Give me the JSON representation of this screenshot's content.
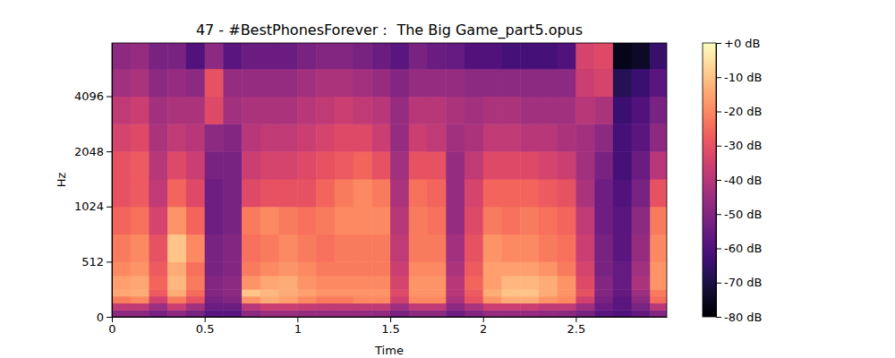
{
  "chart_data": {
    "type": "heatmap",
    "title": "47 - #BestPhonesForever： The Big Game_part5.opus",
    "x_label": "Time",
    "y_label": "Hz",
    "x": [
      0,
      0.1,
      0.2,
      0.3,
      0.4,
      0.5,
      0.6,
      0.7,
      0.8,
      0.9,
      1.0,
      1.1,
      1.2,
      1.3,
      1.4,
      1.5,
      1.6,
      1.7,
      1.8,
      1.9,
      2.0,
      2.1,
      2.2,
      2.3,
      2.4,
      2.5,
      2.6,
      2.7,
      2.8,
      2.9
    ],
    "y": [
      0,
      64,
      128,
      192,
      256,
      384,
      512,
      724,
      1024,
      1448,
      2048,
      2896,
      4096,
      5793
    ],
    "z": [
      [
        -48,
        -48,
        -52,
        -48,
        -52,
        -58,
        -58,
        -48,
        -45,
        -45,
        -46,
        -46,
        -46,
        -46,
        -47,
        -52,
        -48,
        -48,
        -54,
        -50,
        -46,
        -46,
        -46,
        -47,
        -48,
        -52,
        -58,
        -60,
        -56,
        -50
      ],
      [
        -38,
        -38,
        -45,
        -36,
        -44,
        -55,
        -55,
        -40,
        -36,
        -36,
        -37,
        -38,
        -38,
        -38,
        -38,
        -45,
        -38,
        -38,
        -48,
        -42,
        -36,
        -36,
        -36,
        -38,
        -38,
        -45,
        -55,
        -58,
        -52,
        -40
      ],
      [
        -22,
        -20,
        -35,
        -22,
        -30,
        -52,
        -50,
        -18,
        -14,
        -16,
        -20,
        -22,
        -22,
        -20,
        -20,
        -35,
        -20,
        -20,
        -42,
        -30,
        -18,
        -14,
        -14,
        -18,
        -20,
        -35,
        -52,
        -58,
        -48,
        -25
      ],
      [
        -15,
        -14,
        -28,
        -14,
        -25,
        -50,
        -48,
        -10,
        -12,
        -14,
        -16,
        -18,
        -18,
        -18,
        -18,
        -32,
        -18,
        -18,
        -40,
        -28,
        -14,
        -10,
        -10,
        -14,
        -18,
        -30,
        -50,
        -56,
        -45,
        -22
      ],
      [
        -16,
        -15,
        -26,
        -12,
        -22,
        -50,
        -48,
        -18,
        -15,
        -14,
        -18,
        -20,
        -20,
        -20,
        -20,
        -34,
        -18,
        -18,
        -40,
        -26,
        -16,
        -12,
        -12,
        -14,
        -18,
        -32,
        -50,
        -56,
        -42,
        -18
      ],
      [
        -20,
        -18,
        -28,
        -14,
        -24,
        -52,
        -50,
        -22,
        -20,
        -18,
        -20,
        -22,
        -22,
        -22,
        -22,
        -36,
        -20,
        -20,
        -42,
        -28,
        -16,
        -16,
        -16,
        -18,
        -22,
        -34,
        -52,
        -56,
        -44,
        -18
      ],
      [
        -22,
        -20,
        -30,
        -10,
        -20,
        -52,
        -50,
        -24,
        -22,
        -20,
        -22,
        -24,
        -22,
        -22,
        -22,
        -38,
        -22,
        -22,
        -44,
        -30,
        -18,
        -20,
        -20,
        -22,
        -24,
        -36,
        -52,
        -58,
        -46,
        -20
      ],
      [
        -26,
        -24,
        -34,
        -18,
        -26,
        -54,
        -52,
        -22,
        -20,
        -22,
        -24,
        -22,
        -20,
        -20,
        -20,
        -40,
        -22,
        -24,
        -46,
        -32,
        -22,
        -24,
        -22,
        -24,
        -26,
        -38,
        -54,
        -58,
        -48,
        -22
      ],
      [
        -30,
        -28,
        -38,
        -26,
        -32,
        -54,
        -52,
        -32,
        -30,
        -30,
        -30,
        -26,
        -22,
        -20,
        -22,
        -42,
        -24,
        -26,
        -46,
        -34,
        -26,
        -26,
        -26,
        -28,
        -30,
        -42,
        -54,
        -60,
        -52,
        -30
      ],
      [
        -30,
        -28,
        -40,
        -32,
        -36,
        -52,
        -52,
        -36,
        -34,
        -34,
        -32,
        -30,
        -28,
        -26,
        -30,
        -44,
        -30,
        -30,
        -46,
        -38,
        -32,
        -32,
        -32,
        -34,
        -36,
        -44,
        -52,
        -62,
        -55,
        -40
      ],
      [
        -34,
        -32,
        -42,
        -38,
        -40,
        -48,
        -50,
        -40,
        -38,
        -38,
        -36,
        -34,
        -32,
        -32,
        -36,
        -46,
        -36,
        -38,
        -44,
        -42,
        -38,
        -38,
        -40,
        -40,
        -42,
        -44,
        -48,
        -62,
        -58,
        -48
      ],
      [
        -38,
        -36,
        -44,
        -42,
        -42,
        -32,
        -44,
        -42,
        -42,
        -42,
        -40,
        -38,
        -36,
        -38,
        -40,
        -46,
        -40,
        -40,
        -42,
        -44,
        -42,
        -42,
        -44,
        -44,
        -44,
        -40,
        -42,
        -64,
        -60,
        -52
      ],
      [
        -44,
        -42,
        -48,
        -46,
        -48,
        -30,
        -46,
        -46,
        -46,
        -46,
        -44,
        -42,
        -42,
        -44,
        -46,
        -50,
        -46,
        -46,
        -46,
        -48,
        -48,
        -48,
        -48,
        -48,
        -48,
        -36,
        -34,
        -68,
        -64,
        -58
      ],
      [
        -48,
        -46,
        -52,
        -52,
        -60,
        -48,
        -58,
        -55,
        -55,
        -55,
        -52,
        -50,
        -50,
        -52,
        -55,
        -58,
        -52,
        -55,
        -56,
        -60,
        -60,
        -62,
        -62,
        -62,
        -60,
        -34,
        -32,
        -76,
        -74,
        -65
      ]
    ],
    "xlim": [
      0,
      2.99
    ],
    "ylim": [
      0,
      8000
    ],
    "xticks": [
      0,
      0.5,
      1,
      1.5,
      2,
      2.5
    ],
    "yticks": [
      0,
      512,
      1024,
      2048,
      4096
    ],
    "log": "y",
    "color": "magma",
    "colorbar": {
      "range": [
        -80,
        0
      ],
      "ticks": [
        {
          "value": 0,
          "label": "+0 dB"
        },
        {
          "value": -10,
          "label": "-10 dB"
        },
        {
          "value": -20,
          "label": "-20 dB"
        },
        {
          "value": -30,
          "label": "-30 dB"
        },
        {
          "value": -40,
          "label": "-40 dB"
        },
        {
          "value": -50,
          "label": "-50 dB"
        },
        {
          "value": -60,
          "label": "-60 dB"
        },
        {
          "value": -70,
          "label": "-70 dB"
        },
        {
          "value": -80,
          "label": "-80 dB"
        }
      ]
    }
  }
}
